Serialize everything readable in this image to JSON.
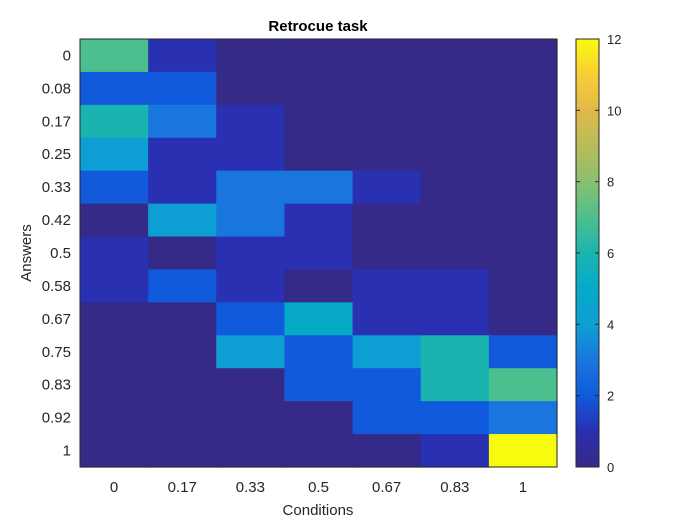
{
  "chart_data": {
    "type": "heatmap",
    "title": "Retrocue task",
    "xlabel": "Conditions",
    "ylabel": "Answers",
    "x_categories": [
      "0",
      "0.17",
      "0.33",
      "0.5",
      "0.67",
      "0.83",
      "1"
    ],
    "y_categories": [
      "0",
      "0.08",
      "0.17",
      "0.25",
      "0.33",
      "0.42",
      "0.5",
      "0.58",
      "0.67",
      "0.75",
      "0.83",
      "0.92",
      "1"
    ],
    "values": [
      [
        7,
        1,
        0,
        0,
        0,
        0,
        0
      ],
      [
        2,
        2,
        0,
        0,
        0,
        0,
        0
      ],
      [
        6,
        3,
        1,
        0,
        0,
        0,
        0
      ],
      [
        4,
        1,
        1,
        0,
        0,
        0,
        0
      ],
      [
        2,
        1,
        3,
        3,
        1,
        0,
        0
      ],
      [
        0,
        4,
        3,
        1,
        0,
        0,
        0
      ],
      [
        1,
        0,
        1,
        1,
        0,
        0,
        0
      ],
      [
        1,
        2,
        1,
        0,
        1,
        1,
        0
      ],
      [
        0,
        0,
        2,
        5,
        1,
        1,
        0
      ],
      [
        0,
        0,
        4,
        2,
        4,
        6,
        2
      ],
      [
        0,
        0,
        0,
        2,
        2,
        6,
        7
      ],
      [
        0,
        0,
        0,
        0,
        2,
        2,
        3
      ],
      [
        0,
        0,
        0,
        0,
        0,
        1,
        12
      ]
    ],
    "colormap": "parula",
    "color_range": [
      0,
      12
    ],
    "colorbar_ticks": [
      "0",
      "2",
      "4",
      "6",
      "8",
      "10",
      "12"
    ]
  }
}
